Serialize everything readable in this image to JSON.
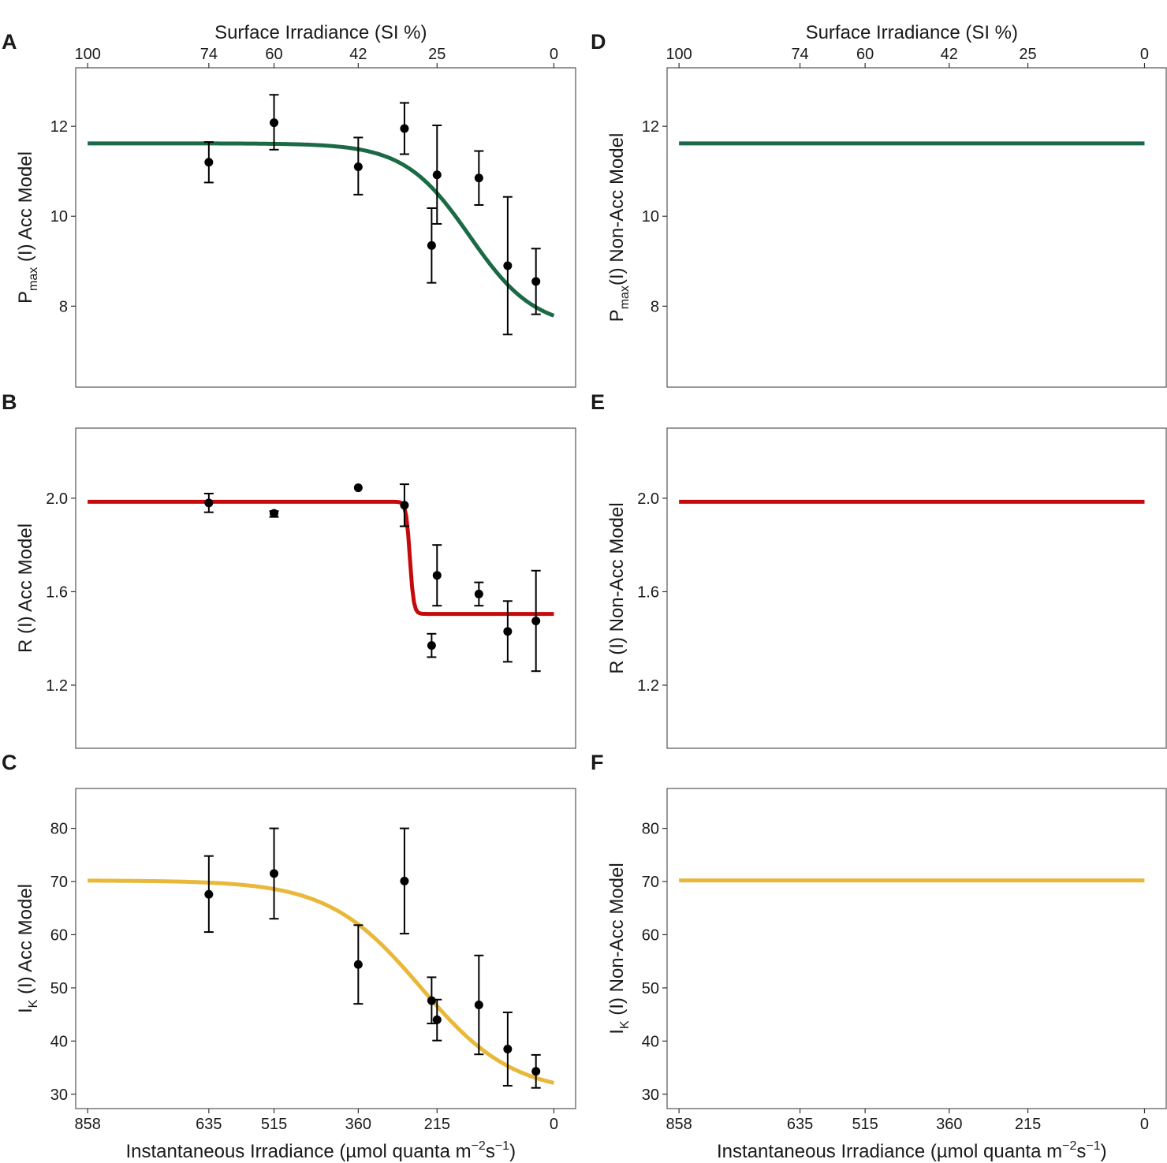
{
  "chart_data": {
    "type": "scatter",
    "top_axis": {
      "title": "Surface Irradiance (SI %)",
      "ticks": [
        100,
        74,
        60,
        42,
        25,
        0
      ],
      "ticks_at_irradiance": [
        858,
        635,
        515,
        360,
        215,
        0
      ]
    },
    "bottom_axis": {
      "title_main": "Instantaneous Irradiance (µmol quanta m",
      "title_sup1": "−2",
      "title_mid": "s",
      "title_sup2": "−1",
      "title_end": ")",
      "ticks": [
        858,
        635,
        515,
        360,
        215,
        0
      ],
      "xlim": [
        880,
        -40
      ]
    },
    "panels": [
      {
        "id": "A",
        "letter": "A",
        "row": 0,
        "col": 0,
        "ylabel": {
          "pre": "P",
          "sub": "max",
          "post": " (I) Acc Model"
        },
        "ylim": [
          6.2,
          13.3
        ],
        "yticks": [
          8,
          10,
          12
        ],
        "color": "#1a6b45",
        "curve": {
          "form": "logistic",
          "low": 7.5,
          "high": 11.62,
          "mid": 155,
          "scale": 60
        },
        "points": [
          {
            "x": 635,
            "y": 11.2,
            "lo": 10.75,
            "hi": 11.65
          },
          {
            "x": 515,
            "y": 12.08,
            "lo": 11.48,
            "hi": 12.7
          },
          {
            "x": 360,
            "y": 11.1,
            "lo": 10.48,
            "hi": 11.75
          },
          {
            "x": 275,
            "y": 11.95,
            "lo": 11.38,
            "hi": 12.52
          },
          {
            "x": 225,
            "y": 9.35,
            "lo": 8.52,
            "hi": 10.18
          },
          {
            "x": 215,
            "y": 10.92,
            "lo": 9.83,
            "hi": 12.02
          },
          {
            "x": 138,
            "y": 10.85,
            "lo": 10.25,
            "hi": 11.45
          },
          {
            "x": 85,
            "y": 8.9,
            "lo": 7.37,
            "hi": 10.43
          },
          {
            "x": 33,
            "y": 8.55,
            "lo": 7.82,
            "hi": 9.28
          }
        ]
      },
      {
        "id": "B",
        "letter": "B",
        "row": 1,
        "col": 0,
        "ylabel": {
          "pre": "R (I) Acc Model",
          "sub": "",
          "post": ""
        },
        "ylim": [
          0.93,
          2.3
        ],
        "yticks": [
          1.2,
          1.6,
          2.0
        ],
        "color": "#c40a0a",
        "curve": {
          "form": "step",
          "low": 1.505,
          "high": 1.985,
          "mid": 265,
          "scale": 3.5
        },
        "points": [
          {
            "x": 635,
            "y": 1.98,
            "lo": 1.94,
            "hi": 2.02
          },
          {
            "x": 515,
            "y": 1.935,
            "lo": 1.92,
            "hi": 1.945
          },
          {
            "x": 360,
            "y": 2.045,
            "lo": 2.045,
            "hi": 2.045
          },
          {
            "x": 275,
            "y": 1.97,
            "lo": 1.88,
            "hi": 2.06
          },
          {
            "x": 225,
            "y": 1.37,
            "lo": 1.32,
            "hi": 1.42
          },
          {
            "x": 215,
            "y": 1.67,
            "lo": 1.54,
            "hi": 1.8
          },
          {
            "x": 138,
            "y": 1.59,
            "lo": 1.54,
            "hi": 1.64
          },
          {
            "x": 85,
            "y": 1.43,
            "lo": 1.3,
            "hi": 1.56
          },
          {
            "x": 33,
            "y": 1.475,
            "lo": 1.26,
            "hi": 1.69
          }
        ]
      },
      {
        "id": "C",
        "letter": "C",
        "row": 2,
        "col": 0,
        "ylabel": {
          "pre": "I",
          "sub": "K",
          "post": " (I) Acc Model"
        },
        "ylim": [
          27.3,
          87.5
        ],
        "yticks": [
          30,
          40,
          50,
          60,
          70,
          80
        ],
        "color": "#e8b83a",
        "curve": {
          "form": "logistic",
          "low": 30,
          "high": 70.2,
          "mid": 245,
          "scale": 85
        },
        "points": [
          {
            "x": 635,
            "y": 67.6,
            "lo": 60.5,
            "hi": 74.8
          },
          {
            "x": 515,
            "y": 71.5,
            "lo": 63.0,
            "hi": 80.0
          },
          {
            "x": 360,
            "y": 54.4,
            "lo": 47.0,
            "hi": 61.8
          },
          {
            "x": 275,
            "y": 70.1,
            "lo": 60.2,
            "hi": 80.0
          },
          {
            "x": 225,
            "y": 47.6,
            "lo": 43.3,
            "hi": 52.0
          },
          {
            "x": 215,
            "y": 44.0,
            "lo": 40.1,
            "hi": 47.8
          },
          {
            "x": 138,
            "y": 46.8,
            "lo": 37.5,
            "hi": 56.1
          },
          {
            "x": 85,
            "y": 38.5,
            "lo": 31.6,
            "hi": 45.4
          },
          {
            "x": 33,
            "y": 34.3,
            "lo": 31.2,
            "hi": 37.4
          }
        ]
      },
      {
        "id": "D",
        "letter": "D",
        "row": 0,
        "col": 1,
        "ylabel": {
          "pre": "P",
          "sub": "max",
          "post": "(I) Non-Acc Model"
        },
        "ylim": [
          6.2,
          13.3
        ],
        "yticks": [
          8,
          10,
          12
        ],
        "color": "#1a6b45",
        "curve": {
          "form": "constant",
          "value": 11.62
        },
        "points": []
      },
      {
        "id": "E",
        "letter": "E",
        "row": 1,
        "col": 1,
        "ylabel": {
          "pre": "R (I) Non-Acc Model",
          "sub": "",
          "post": ""
        },
        "ylim": [
          0.93,
          2.3
        ],
        "yticks": [
          1.2,
          1.6,
          2.0
        ],
        "color": "#c40a0a",
        "curve": {
          "form": "constant",
          "value": 1.985
        },
        "points": []
      },
      {
        "id": "F",
        "letter": "F",
        "row": 2,
        "col": 1,
        "ylabel": {
          "pre": "I",
          "sub": "K",
          "post": " (I) Non-Acc Model"
        },
        "ylim": [
          27.3,
          87.5
        ],
        "yticks": [
          30,
          40,
          50,
          60,
          70,
          80
        ],
        "color": "#e8b83a",
        "curve": {
          "form": "constant",
          "value": 70.2
        },
        "points": []
      }
    ]
  }
}
